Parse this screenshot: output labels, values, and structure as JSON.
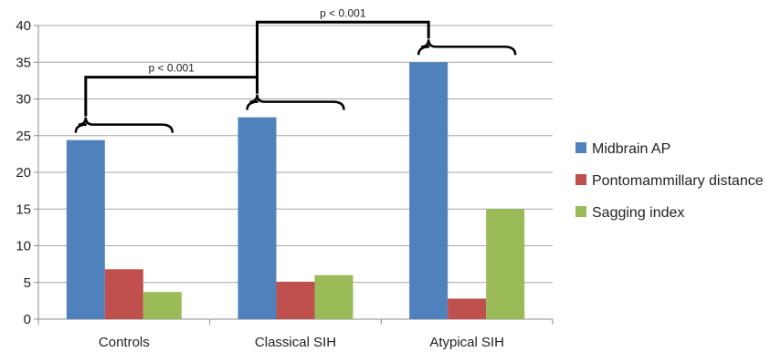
{
  "chart_data": {
    "type": "bar",
    "categories": [
      "Controls",
      "Classical SIH",
      "Atypical SIH"
    ],
    "series": [
      {
        "name": "Midbrain AP",
        "color": "#4F81BD",
        "values": [
          24.4,
          27.5,
          35.0
        ]
      },
      {
        "name": "Pontomammillary distance",
        "color": "#C0504D",
        "values": [
          6.8,
          5.1,
          2.8
        ]
      },
      {
        "name": "Sagging index",
        "color": "#9BBB59",
        "values": [
          3.7,
          6.0,
          15.0
        ]
      }
    ],
    "ylim": [
      0,
      40
    ],
    "yticks": [
      0,
      5,
      10,
      15,
      20,
      25,
      30,
      35,
      40
    ],
    "grid": true,
    "legend_position": "right",
    "annotations": [
      {
        "text": "p < 0.001",
        "from": "Controls",
        "to": "Classical SIH"
      },
      {
        "text": "p < 0.001",
        "from": "Classical SIH",
        "to": "Atypical SIH"
      }
    ]
  }
}
